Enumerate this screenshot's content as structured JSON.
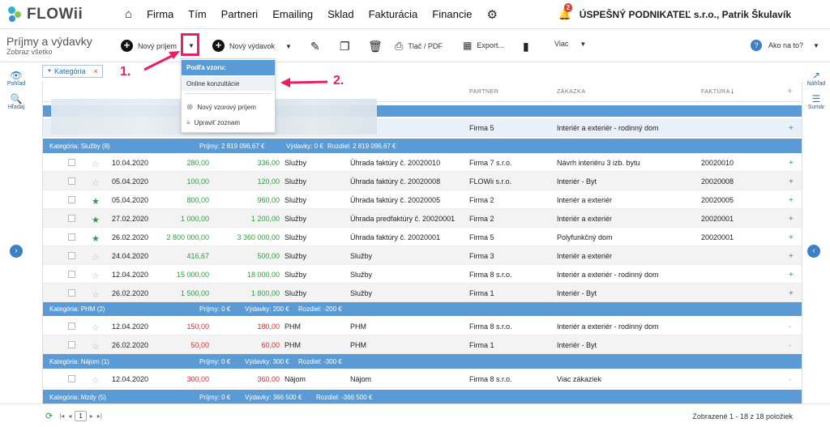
{
  "brand": {
    "name": "FLOWii"
  },
  "nav": {
    "items": [
      "Firma",
      "Tím",
      "Partneri",
      "Emailing",
      "Sklad",
      "Fakturácia",
      "Financie"
    ]
  },
  "user": {
    "notif_count": "2",
    "company": "ÚSPEŠNÝ PODNIKATEĽ s.r.o., Patrik Škulavík"
  },
  "page": {
    "title": "Príjmy a výdavky",
    "subtitle": "Zobraz všetko"
  },
  "toolbar": {
    "new_income": "Nový príjem",
    "new_expense": "Nový výdavok",
    "print": "Tlač / PDF",
    "export": "Export...",
    "more": "Viac",
    "help": "Ako na to?"
  },
  "filter": {
    "chip": "Kategória",
    "remove": "×"
  },
  "left_side": {
    "view": "Pohľad",
    "search": "Hľadaj"
  },
  "right_side": {
    "preview": "Náhľad",
    "summary": "Sumár"
  },
  "dropdown": {
    "header": "Podľa vzoru:",
    "items": [
      "Online konzultácie"
    ],
    "new_template": "Nový vzorový príjem",
    "edit_list": "Upraviť zoznam"
  },
  "annotations": {
    "one": "1.",
    "two": "2."
  },
  "columns": {
    "partner": "PARTNER",
    "zakazka": "ZÁKAZKA",
    "faktura": "FAKTÚRA"
  },
  "partial_row": {
    "partner": "Firma 5",
    "zakazka": "Interiér a exteriér - rodinný dom",
    "plus": "+"
  },
  "groups": [
    {
      "label": "Kategória: Služby (8)",
      "prijmy": "Príjmy: 2 819 096,67 €",
      "vydavky": "Výdavky: 0 €",
      "rozdiel": "Rozdiel: 2 819 096,67 €"
    },
    {
      "label": "Kategória: PHM (2)",
      "prijmy": "Príjmy: 0 €",
      "vydavky": "Výdavky: 200 €",
      "rozdiel": "Rozdiel: -200 €"
    },
    {
      "label": "Kategória: Nájom (1)",
      "prijmy": "Príjmy: 0 €",
      "vydavky": "Výdavky: 300 €",
      "rozdiel": "Rozdiel: -300 €"
    },
    {
      "label": "Kategória: Mzdy (5)",
      "prijmy": "Príjmy: 0 €",
      "vydavky": "Výdavky: 366 500 €",
      "rozdiel": "Rozdiel: -366 500 €"
    }
  ],
  "rows": [
    {
      "date": "10.04.2020",
      "net": "280,00",
      "gross": "336,00",
      "cat": "Služby",
      "desc": "Úhrada faktúry č. 20020010",
      "partner": "Firma 7 s.r.o.",
      "zakazka": "Návrh interiéru 3 izb. bytu",
      "faktura": "20020010",
      "mark": "+"
    },
    {
      "date": "05.04.2020",
      "net": "100,00",
      "gross": "120,00",
      "cat": "Služby",
      "desc": "Úhrada faktúry č. 20020008",
      "partner": "FLOWii s.r.o.",
      "zakazka": "Interiér - Byt",
      "faktura": "20020008",
      "mark": "+"
    },
    {
      "date": "05.04.2020",
      "net": "800,00",
      "gross": "960,00",
      "cat": "Služby",
      "desc": "Úhrada faktúry č. 20020005",
      "partner": "Firma 2",
      "zakazka": "Interiér a exteriér",
      "faktura": "20020005",
      "mark": "+"
    },
    {
      "date": "27.02.2020",
      "net": "1 000,00",
      "gross": "1 200,00",
      "cat": "Služby",
      "desc": "Úhrada predfaktúry č. 20020001",
      "partner": "Firma 2",
      "zakazka": "Interiér a exteriér",
      "faktura": "20020001",
      "mark": "+"
    },
    {
      "date": "26.02.2020",
      "net": "2 800 000,00",
      "gross": "3 360 000,00",
      "cat": "Služby",
      "desc": "Úhrada faktúry č. 20020001",
      "partner": "Firma 5",
      "zakazka": "Polyfunkčný dom",
      "faktura": "20020001",
      "mark": "+"
    },
    {
      "date": "24.04.2020",
      "net": "416,67",
      "gross": "500,00",
      "cat": "Služby",
      "desc": "Služby",
      "partner": "Firma 3",
      "zakazka": "Interiér a exteriér",
      "faktura": "",
      "mark": "+"
    },
    {
      "date": "12.04.2020",
      "net": "15 000,00",
      "gross": "18 000,00",
      "cat": "Služby",
      "desc": "Služby",
      "partner": "Firma 8 s.r.o.",
      "zakazka": "Interiér a exteriér - rodinný dom",
      "faktura": "",
      "mark": "+"
    },
    {
      "date": "26.02.2020",
      "net": "1 500,00",
      "gross": "1 800,00",
      "cat": "Služby",
      "desc": "Služby",
      "partner": "Firma 1",
      "zakazka": "Interiér - Byt",
      "faktura": "",
      "mark": "+"
    },
    {
      "date": "12.04.2020",
      "net": "150,00",
      "gross": "180,00",
      "cat": "PHM",
      "desc": "PHM",
      "partner": "Firma 8 s.r.o.",
      "zakazka": "Interiér a exteriér - rodinný dom",
      "faktura": "",
      "mark": "-"
    },
    {
      "date": "26.02.2020",
      "net": "50,00",
      "gross": "60,00",
      "cat": "PHM",
      "desc": "PHM",
      "partner": "Firma 1",
      "zakazka": "Interiér - Byt",
      "faktura": "",
      "mark": "-"
    },
    {
      "date": "12.04.2020",
      "net": "300,00",
      "gross": "360,00",
      "cat": "Nájom",
      "desc": "Nájom",
      "partner": "Firma 8 s.r.o.",
      "zakazka": "Viac zákaziek",
      "faktura": "",
      "mark": "-"
    }
  ],
  "footer": {
    "page": "1",
    "count": "Zobrazené 1 - 18 z 18 položiek"
  }
}
